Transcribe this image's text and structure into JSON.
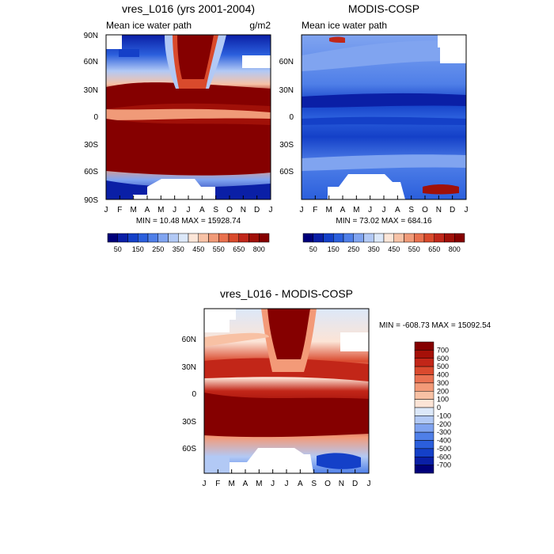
{
  "panels": {
    "model": {
      "title": "vres_L016 (yrs 2001-2004)",
      "subtitle": "Mean ice water path",
      "units": "g/m2",
      "stats": "MIN =  10.48 MAX = 15928.74"
    },
    "obs": {
      "title": "MODIS-COSP",
      "subtitle": "Mean ice water path",
      "stats": "MIN =  73.02 MAX = 684.16"
    },
    "diff": {
      "title": "vres_L016 - MODIS-COSP",
      "stats": "MIN = -608.73 MAX = 15092.54"
    }
  },
  "colorbars": {
    "abs_labels": [
      "50",
      "150",
      "250",
      "350",
      "450",
      "550",
      "650",
      "800"
    ],
    "abs_colors": [
      "#00007a",
      "#0a1fa6",
      "#1440c8",
      "#2b5fdc",
      "#4f7fe8",
      "#80a4f0",
      "#b2c9f5",
      "#dce8f9",
      "#fce6d8",
      "#f7c2a6",
      "#f09a78",
      "#e8714e",
      "#d94a2c",
      "#c0271a",
      "#a01008",
      "#850000"
    ],
    "diff_labels": [
      "700",
      "600",
      "500",
      "400",
      "300",
      "200",
      "100",
      "0",
      "-100",
      "-200",
      "-300",
      "-400",
      "-500",
      "-600",
      "-700"
    ],
    "diff_colors": [
      "#850000",
      "#a51008",
      "#c22618",
      "#da4a2e",
      "#ea7252",
      "#f39a78",
      "#f8c1a4",
      "#fce4d6",
      "#dce8f9",
      "#b2c9f5",
      "#80a4f0",
      "#4f7fe8",
      "#2b5fdc",
      "#1440c8",
      "#0a1fa6",
      "#00007a"
    ]
  },
  "chart_data": [
    {
      "type": "heatmap",
      "title": "vres_L016 (yrs 2001-2004)",
      "subtitle": "Mean ice water path",
      "units": "g/m2",
      "x_ticks": [
        "J",
        "F",
        "M",
        "A",
        "M",
        "J",
        "J",
        "A",
        "S",
        "O",
        "N",
        "D",
        "J"
      ],
      "y_ticks": [
        "90N",
        "60N",
        "30N",
        "0",
        "30S",
        "60S",
        "90S"
      ],
      "ylim": [
        -90,
        90
      ],
      "levels": [
        50,
        100,
        150,
        200,
        250,
        300,
        350,
        400,
        450,
        500,
        550,
        600,
        650,
        700,
        800
      ],
      "min": 10.48,
      "max": 15928.74
    },
    {
      "type": "heatmap",
      "title": "MODIS-COSP",
      "subtitle": "Mean ice water path",
      "x_ticks": [
        "J",
        "F",
        "M",
        "A",
        "M",
        "J",
        "J",
        "A",
        "S",
        "O",
        "N",
        "D",
        "J"
      ],
      "y_ticks": [
        "60N",
        "30N",
        "0",
        "30S",
        "60S"
      ],
      "ylim": [
        -90,
        90
      ],
      "levels": [
        50,
        100,
        150,
        200,
        250,
        300,
        350,
        400,
        450,
        500,
        550,
        600,
        650,
        700,
        800
      ],
      "min": 73.02,
      "max": 684.16
    },
    {
      "type": "heatmap",
      "title": "vres_L016 - MODIS-COSP",
      "x_ticks": [
        "J",
        "F",
        "M",
        "A",
        "M",
        "J",
        "J",
        "A",
        "S",
        "O",
        "N",
        "D",
        "J"
      ],
      "y_ticks": [
        "60N",
        "30N",
        "0",
        "30S",
        "60S"
      ],
      "ylim": [
        -90,
        90
      ],
      "levels": [
        -700,
        -600,
        -500,
        -400,
        -300,
        -200,
        -100,
        0,
        100,
        200,
        300,
        400,
        500,
        600,
        700
      ],
      "min": -608.73,
      "max": 15092.54
    }
  ]
}
